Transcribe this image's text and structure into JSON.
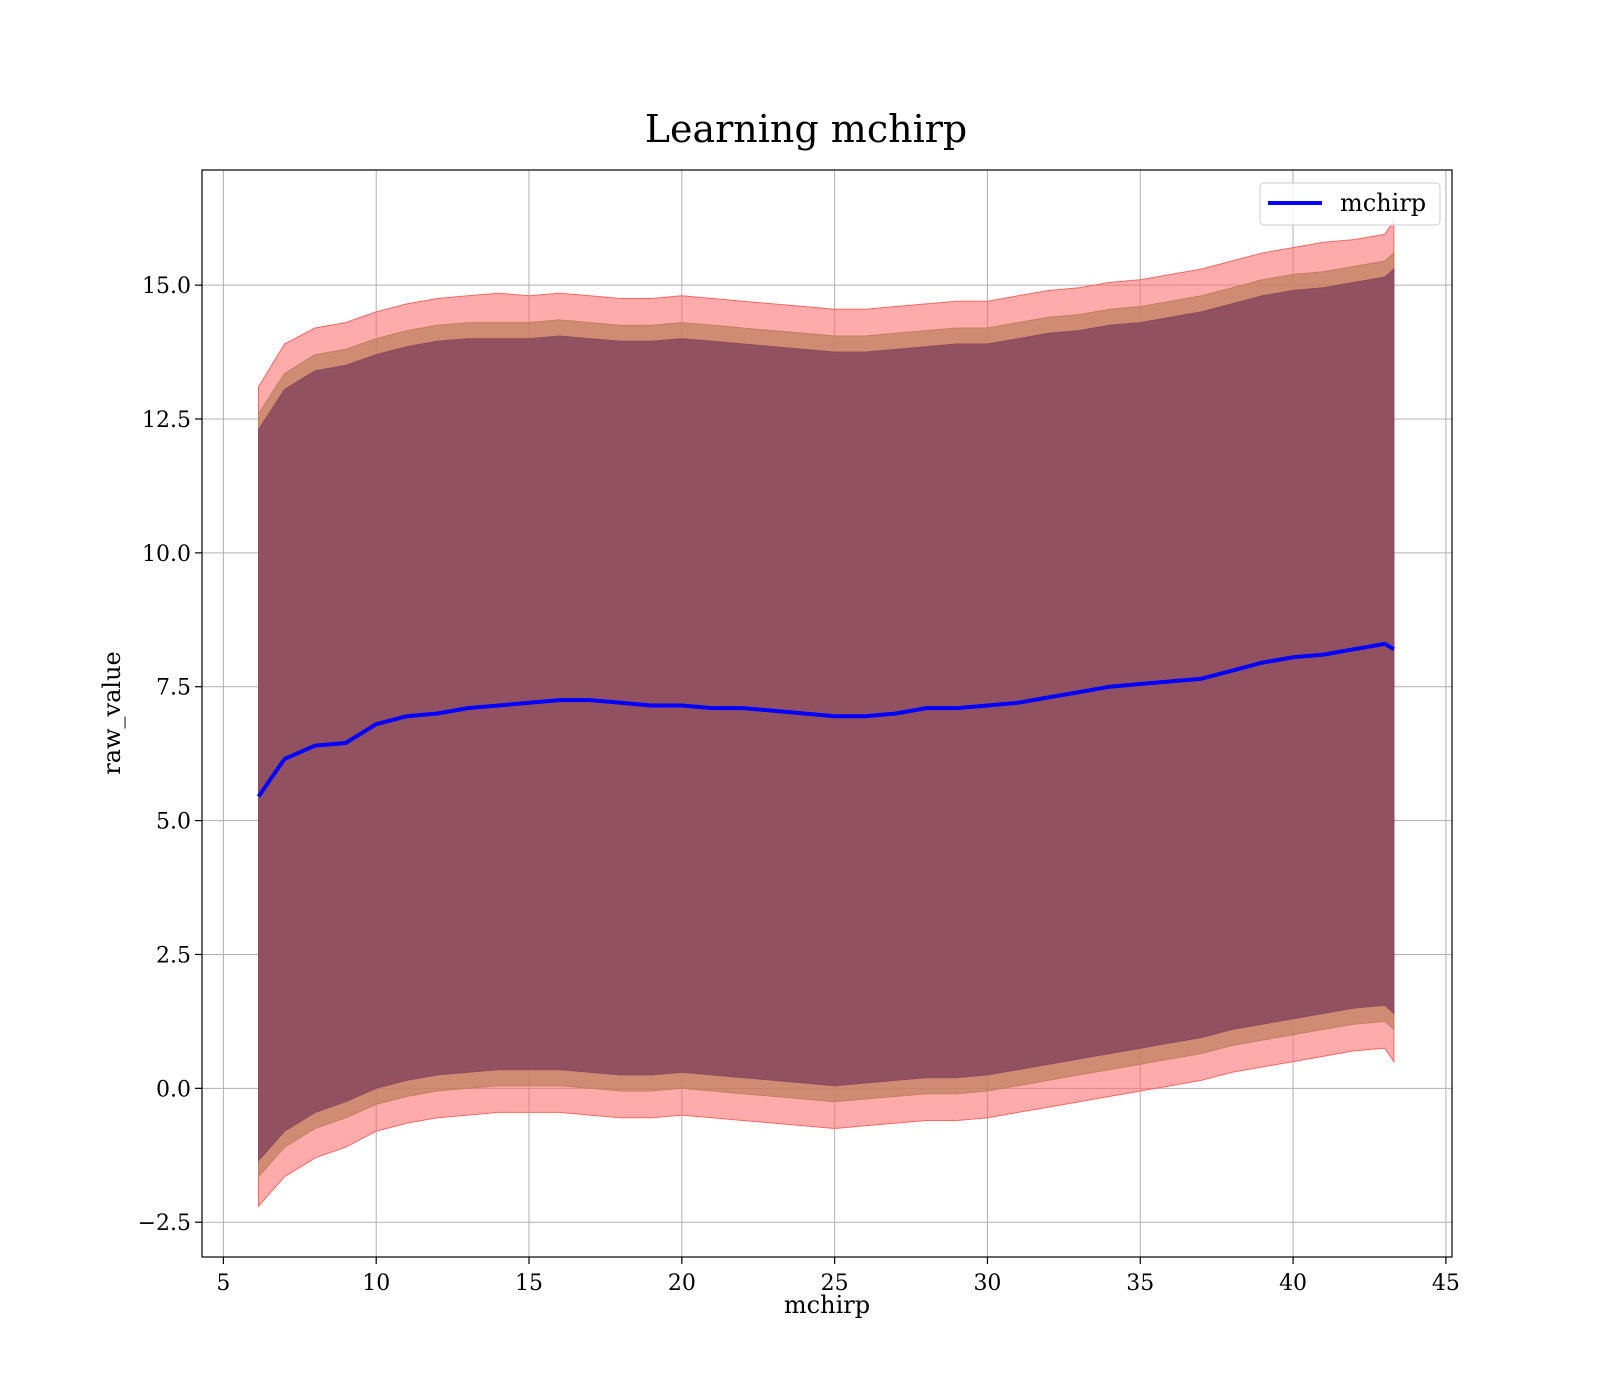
{
  "chart_data": {
    "type": "line",
    "title": "Learning mchirp",
    "xlabel": "mchirp",
    "ylabel": "raw_value",
    "xlim": [
      4.3,
      45.2
    ],
    "ylim": [
      -3.15,
      17.15
    ],
    "x_ticks": [
      5,
      10,
      15,
      20,
      25,
      30,
      35,
      40,
      45
    ],
    "x_tick_labels": [
      "5",
      "10",
      "15",
      "20",
      "25",
      "30",
      "35",
      "40",
      "45"
    ],
    "y_ticks": [
      -2.5,
      0,
      2.5,
      5,
      7.5,
      10,
      12.5,
      15
    ],
    "y_tick_labels": [
      "−2.5",
      "0.0",
      "2.5",
      "5.0",
      "7.5",
      "10.0",
      "12.5",
      "15.0"
    ],
    "grid": true,
    "legend": {
      "position": "top-right",
      "entries": [
        "mchirp"
      ]
    },
    "colors": {
      "line": "#0000ff",
      "outer_band": "#ff6666",
      "middle_band": "#c08060",
      "inner_band": "#8b4a5e"
    },
    "x": [
      6.15,
      7,
      8,
      9,
      10,
      11,
      12,
      13,
      14,
      15,
      16,
      17,
      18,
      19,
      20,
      21,
      22,
      23,
      24,
      25,
      26,
      27,
      28,
      29,
      30,
      31,
      32,
      33,
      34,
      35,
      36,
      37,
      38,
      39,
      40,
      41,
      42,
      43,
      43.3
    ],
    "series": [
      {
        "name": "mchirp",
        "values": [
          5.45,
          6.15,
          6.4,
          6.45,
          6.8,
          6.95,
          7.0,
          7.1,
          7.15,
          7.2,
          7.25,
          7.25,
          7.2,
          7.15,
          7.15,
          7.1,
          7.1,
          7.05,
          7.0,
          6.95,
          6.95,
          7.0,
          7.1,
          7.1,
          7.15,
          7.2,
          7.3,
          7.4,
          7.5,
          7.55,
          7.6,
          7.65,
          7.8,
          7.95,
          8.05,
          8.1,
          8.2,
          8.3,
          8.2
        ]
      }
    ],
    "bands": [
      {
        "level": "outer",
        "upper": [
          13.1,
          13.9,
          14.2,
          14.3,
          14.5,
          14.65,
          14.75,
          14.8,
          14.85,
          14.8,
          14.85,
          14.8,
          14.75,
          14.75,
          14.8,
          14.75,
          14.7,
          14.65,
          14.6,
          14.55,
          14.55,
          14.6,
          14.65,
          14.7,
          14.7,
          14.8,
          14.9,
          14.95,
          15.05,
          15.1,
          15.2,
          15.3,
          15.45,
          15.6,
          15.7,
          15.8,
          15.85,
          15.95,
          16.2
        ],
        "lower": [
          -2.2,
          -1.65,
          -1.3,
          -1.1,
          -0.8,
          -0.65,
          -0.55,
          -0.5,
          -0.45,
          -0.45,
          -0.45,
          -0.5,
          -0.55,
          -0.55,
          -0.5,
          -0.55,
          -0.6,
          -0.65,
          -0.7,
          -0.75,
          -0.7,
          -0.65,
          -0.6,
          -0.6,
          -0.55,
          -0.45,
          -0.35,
          -0.25,
          -0.15,
          -0.05,
          0.05,
          0.15,
          0.3,
          0.4,
          0.5,
          0.6,
          0.7,
          0.75,
          0.5
        ]
      },
      {
        "level": "middle",
        "upper": [
          12.6,
          13.35,
          13.7,
          13.8,
          14.0,
          14.15,
          14.25,
          14.3,
          14.3,
          14.3,
          14.35,
          14.3,
          14.25,
          14.25,
          14.3,
          14.25,
          14.2,
          14.15,
          14.1,
          14.05,
          14.05,
          14.1,
          14.15,
          14.2,
          14.2,
          14.3,
          14.4,
          14.45,
          14.55,
          14.6,
          14.7,
          14.8,
          14.95,
          15.1,
          15.2,
          15.25,
          15.35,
          15.45,
          15.6
        ],
        "lower": [
          -1.65,
          -1.1,
          -0.75,
          -0.55,
          -0.3,
          -0.15,
          -0.05,
          0.0,
          0.05,
          0.05,
          0.05,
          0.0,
          -0.05,
          -0.05,
          0.0,
          -0.05,
          -0.1,
          -0.15,
          -0.2,
          -0.25,
          -0.2,
          -0.15,
          -0.1,
          -0.1,
          -0.05,
          0.05,
          0.15,
          0.25,
          0.35,
          0.45,
          0.55,
          0.65,
          0.8,
          0.9,
          1.0,
          1.1,
          1.2,
          1.25,
          1.1
        ]
      },
      {
        "level": "inner",
        "upper": [
          12.3,
          13.05,
          13.4,
          13.5,
          13.7,
          13.85,
          13.95,
          14.0,
          14.0,
          14.0,
          14.05,
          14.0,
          13.95,
          13.95,
          14.0,
          13.95,
          13.9,
          13.85,
          13.8,
          13.75,
          13.75,
          13.8,
          13.85,
          13.9,
          13.9,
          14.0,
          14.1,
          14.15,
          14.25,
          14.3,
          14.4,
          14.5,
          14.65,
          14.8,
          14.9,
          14.95,
          15.05,
          15.15,
          15.3
        ],
        "lower": [
          -1.35,
          -0.8,
          -0.45,
          -0.25,
          0.0,
          0.15,
          0.25,
          0.3,
          0.35,
          0.35,
          0.35,
          0.3,
          0.25,
          0.25,
          0.3,
          0.25,
          0.2,
          0.15,
          0.1,
          0.05,
          0.1,
          0.15,
          0.2,
          0.2,
          0.25,
          0.35,
          0.45,
          0.55,
          0.65,
          0.75,
          0.85,
          0.95,
          1.1,
          1.2,
          1.3,
          1.4,
          1.5,
          1.55,
          1.4
        ]
      }
    ]
  }
}
